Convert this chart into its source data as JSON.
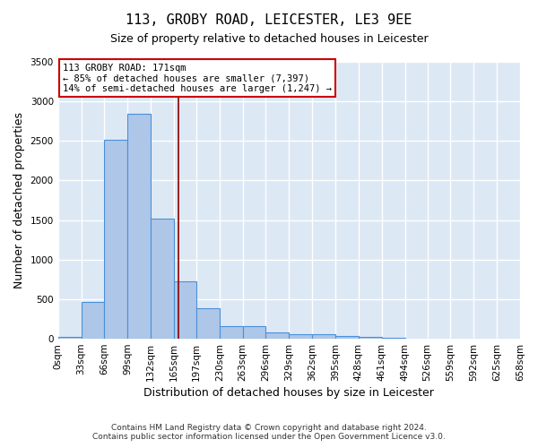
{
  "title_line1": "113, GROBY ROAD, LEICESTER, LE3 9EE",
  "title_line2": "Size of property relative to detached houses in Leicester",
  "xlabel": "Distribution of detached houses by size in Leicester",
  "ylabel": "Number of detached properties",
  "bar_values": [
    20,
    470,
    2510,
    2840,
    1520,
    730,
    390,
    155,
    155,
    75,
    55,
    55,
    35,
    20,
    10,
    5,
    0,
    0,
    0,
    0
  ],
  "bin_edges": [
    0,
    33,
    66,
    99,
    132,
    165,
    197,
    230,
    263,
    296,
    329,
    362,
    395,
    428,
    461,
    494,
    526,
    559,
    592,
    625,
    658
  ],
  "tick_labels": [
    "0sqm",
    "33sqm",
    "66sqm",
    "99sqm",
    "132sqm",
    "165sqm",
    "197sqm",
    "230sqm",
    "263sqm",
    "296sqm",
    "329sqm",
    "362sqm",
    "395sqm",
    "428sqm",
    "461sqm",
    "494sqm",
    "526sqm",
    "559sqm",
    "592sqm",
    "625sqm",
    "658sqm"
  ],
  "bar_color": "#aec6e8",
  "bar_edge_color": "#4a90d9",
  "background_color": "#dde8f5",
  "grid_color": "#ffffff",
  "red_line_x": 171,
  "annotation_text_line1": "113 GROBY ROAD: 171sqm",
  "annotation_text_line2": "← 85% of detached houses are smaller (7,397)",
  "annotation_text_line3": "14% of semi-detached houses are larger (1,247) →",
  "annotation_box_color": "#ffffff",
  "annotation_box_edge": "#cc0000",
  "footer_line1": "Contains HM Land Registry data © Crown copyright and database right 2024.",
  "footer_line2": "Contains public sector information licensed under the Open Government Licence v3.0.",
  "ylim": [
    0,
    3500
  ],
  "yticks": [
    0,
    500,
    1000,
    1500,
    2000,
    2500,
    3000,
    3500
  ],
  "title_fontsize": 11,
  "subtitle_fontsize": 9,
  "ylabel_fontsize": 9,
  "xlabel_fontsize": 9,
  "tick_fontsize": 7.5,
  "annotation_fontsize": 7.5,
  "footer_fontsize": 6.5
}
